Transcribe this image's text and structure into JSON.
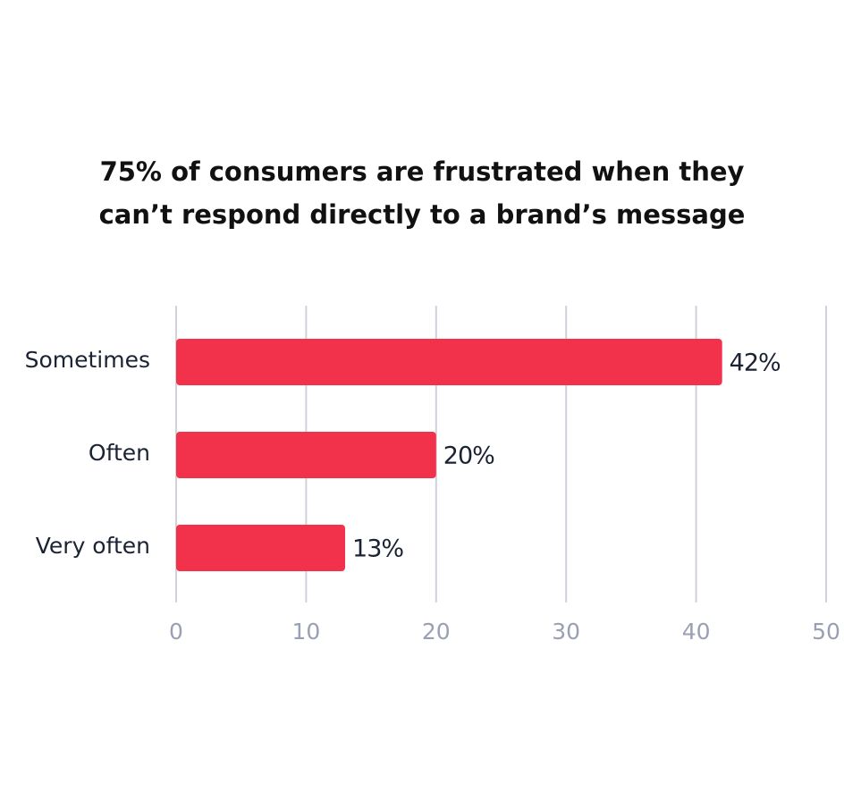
{
  "chart_data": {
    "type": "bar",
    "orientation": "horizontal",
    "title_lines": [
      "75% of consumers are frustrated when they",
      "can’t respond directly to a brand’s message"
    ],
    "categories": [
      "Sometimes",
      "Often",
      "Very often"
    ],
    "values": [
      42,
      20,
      13
    ],
    "value_labels": [
      "42%",
      "20%",
      "13%"
    ],
    "xlim": [
      0,
      50
    ],
    "x_ticks": [
      "0",
      "10",
      "20",
      "30",
      "40",
      "50"
    ],
    "grid": true,
    "bar_color": "#f2314a",
    "xlabel": "",
    "ylabel": ""
  }
}
